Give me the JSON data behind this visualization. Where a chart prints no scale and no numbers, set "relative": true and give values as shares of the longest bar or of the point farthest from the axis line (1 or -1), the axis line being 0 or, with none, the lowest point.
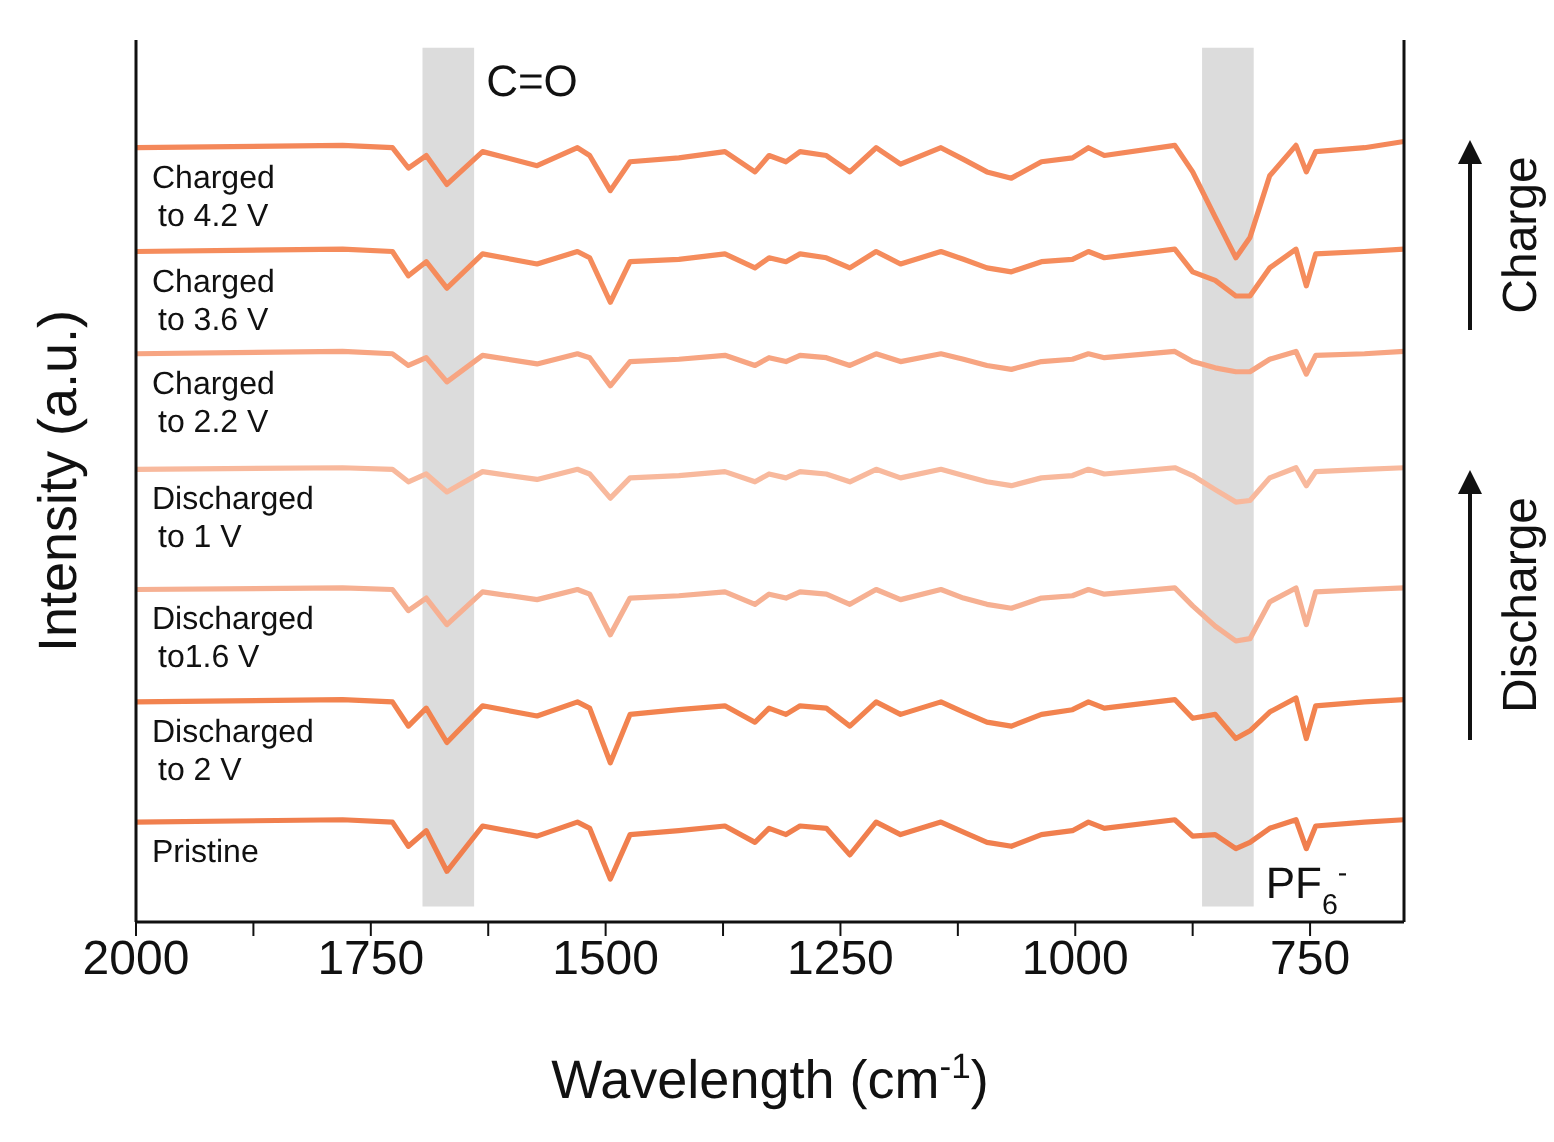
{
  "chart_data": {
    "type": "line",
    "xlabel": "Wavelength (cm$^{-1}$)",
    "ylabel": "Intensity (a.u.)",
    "relative": true,
    "legend": false,
    "grid": false,
    "marker": "none",
    "line_style": "solid",
    "xlim": [
      2000,
      650
    ],
    "xticks": [
      2000,
      {
        "value": 1875,
        "label": null
      },
      1750,
      {
        "value": 1625,
        "label": null
      },
      1500,
      {
        "value": 1375,
        "label": null
      },
      1250,
      {
        "value": 1125,
        "label": null
      },
      1000,
      {
        "value": 875,
        "label": null
      },
      750
    ],
    "x": [
      2000,
      1780,
      1727,
      1710,
      1691,
      1669,
      1631,
      1573,
      1530,
      1517,
      1495,
      1474,
      1422,
      1373,
      1341,
      1326,
      1308,
      1293,
      1265,
      1240,
      1212,
      1186,
      1143,
      1119,
      1094,
      1068,
      1036,
      1003,
      986,
      969,
      894,
      875,
      851,
      829,
      814,
      793,
      765,
      754,
      744,
      692,
      650
    ],
    "series": [
      {
        "name": "Charged to 4.2 V",
        "color": "#f4885a",
        "values": [
          0.992,
          0.995,
          0.992,
          0.966,
          0.982,
          0.945,
          0.987,
          0.969,
          0.992,
          0.982,
          0.937,
          0.974,
          0.979,
          0.987,
          0.961,
          0.982,
          0.974,
          0.987,
          0.982,
          0.961,
          0.992,
          0.971,
          0.992,
          0.977,
          0.961,
          0.953,
          0.974,
          0.979,
          0.992,
          0.982,
          0.995,
          0.961,
          0.903,
          0.851,
          0.877,
          0.956,
          0.995,
          0.961,
          0.987,
          0.992,
          1
        ]
      },
      {
        "name": "Charged to 3.6 V",
        "color": "#f58c5c",
        "values": [
          0.859,
          0.862,
          0.859,
          0.828,
          0.846,
          0.812,
          0.856,
          0.843,
          0.859,
          0.851,
          0.794,
          0.846,
          0.849,
          0.856,
          0.838,
          0.851,
          0.846,
          0.856,
          0.851,
          0.838,
          0.859,
          0.843,
          0.859,
          0.849,
          0.838,
          0.833,
          0.846,
          0.849,
          0.859,
          0.851,
          0.862,
          0.833,
          0.822,
          0.802,
          0.802,
          0.838,
          0.862,
          0.815,
          0.856,
          0.859,
          0.862
        ]
      },
      {
        "name": "Charged to 2.2 V",
        "color": "#f7a582",
        "values": [
          0.728,
          0.731,
          0.728,
          0.713,
          0.723,
          0.692,
          0.726,
          0.715,
          0.728,
          0.723,
          0.687,
          0.718,
          0.721,
          0.726,
          0.713,
          0.723,
          0.718,
          0.726,
          0.723,
          0.713,
          0.728,
          0.718,
          0.728,
          0.721,
          0.713,
          0.708,
          0.718,
          0.721,
          0.728,
          0.723,
          0.731,
          0.718,
          0.71,
          0.705,
          0.705,
          0.721,
          0.731,
          0.702,
          0.726,
          0.728,
          0.731
        ]
      },
      {
        "name": "Discharged to 1 V",
        "color": "#f8b99d",
        "values": [
          0.58,
          0.582,
          0.58,
          0.564,
          0.574,
          0.551,
          0.577,
          0.567,
          0.58,
          0.574,
          0.543,
          0.569,
          0.572,
          0.577,
          0.564,
          0.574,
          0.569,
          0.577,
          0.574,
          0.564,
          0.58,
          0.569,
          0.58,
          0.572,
          0.564,
          0.559,
          0.569,
          0.572,
          0.58,
          0.574,
          0.582,
          0.572,
          0.554,
          0.538,
          0.54,
          0.569,
          0.582,
          0.559,
          0.577,
          0.58,
          0.582
        ]
      },
      {
        "name": "Discharged to1.6 V",
        "color": "#f6b092",
        "values": [
          0.426,
          0.428,
          0.426,
          0.399,
          0.415,
          0.381,
          0.423,
          0.413,
          0.426,
          0.42,
          0.368,
          0.415,
          0.418,
          0.423,
          0.407,
          0.42,
          0.415,
          0.423,
          0.42,
          0.407,
          0.426,
          0.413,
          0.426,
          0.415,
          0.407,
          0.402,
          0.415,
          0.418,
          0.426,
          0.42,
          0.428,
          0.405,
          0.379,
          0.36,
          0.363,
          0.41,
          0.428,
          0.381,
          0.423,
          0.426,
          0.428
        ]
      },
      {
        "name": "Discharged to 2 V",
        "color": "#f2834f",
        "values": [
          0.282,
          0.285,
          0.282,
          0.251,
          0.274,
          0.23,
          0.277,
          0.264,
          0.282,
          0.274,
          0.204,
          0.266,
          0.272,
          0.277,
          0.256,
          0.274,
          0.266,
          0.277,
          0.274,
          0.251,
          0.282,
          0.266,
          0.282,
          0.269,
          0.256,
          0.251,
          0.266,
          0.272,
          0.282,
          0.274,
          0.285,
          0.261,
          0.266,
          0.235,
          0.245,
          0.269,
          0.287,
          0.235,
          0.277,
          0.282,
          0.285
        ]
      },
      {
        "name": "Pristine",
        "color": "#f07f4e",
        "values": [
          0.128,
          0.131,
          0.128,
          0.097,
          0.117,
          0.065,
          0.123,
          0.11,
          0.128,
          0.12,
          0.055,
          0.112,
          0.117,
          0.123,
          0.102,
          0.12,
          0.112,
          0.123,
          0.12,
          0.086,
          0.128,
          0.112,
          0.128,
          0.115,
          0.102,
          0.097,
          0.112,
          0.117,
          0.128,
          0.12,
          0.131,
          0.11,
          0.112,
          0.094,
          0.102,
          0.12,
          0.131,
          0.094,
          0.123,
          0.128,
          0.131
        ]
      }
    ],
    "bands": [
      {
        "axis": "x",
        "from": 1695,
        "to": 1640,
        "label": "C=O",
        "color": "#dcdcdc"
      },
      {
        "axis": "x",
        "from": 865,
        "to": 810,
        "label": "PF$_{6}$$^{-}$",
        "color": "#dcdcdc"
      }
    ],
    "annotations": [
      "Charge",
      "Discharge"
    ]
  }
}
